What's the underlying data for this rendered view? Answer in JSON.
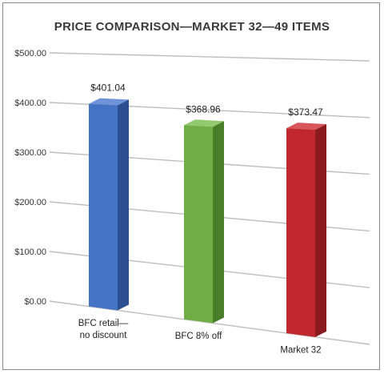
{
  "chart_data": {
    "type": "bar",
    "title": "PRICE COMPARISON—MARKET 32—49 ITEMS",
    "categories": [
      [
        "BFC retail—",
        "no discount"
      ],
      [
        "BFC 8% off"
      ],
      [
        "Market 32"
      ]
    ],
    "values": [
      401.04,
      368.96,
      373.47
    ],
    "value_labels": [
      "$401.04",
      "$368.96",
      "$373.47"
    ],
    "ylim": [
      0,
      500
    ],
    "yticks": [
      "$0.00",
      "$100.00",
      "$200.00",
      "$300.00",
      "$400.00",
      "$500.00"
    ],
    "grid": true,
    "three_d": true,
    "colors": {
      "bars": [
        "#4472c4",
        "#70ad47",
        "#c0282d"
      ],
      "bar_tops": [
        "#6e93d8",
        "#93c96f",
        "#d8555a"
      ],
      "bar_sides": [
        "#2c4f91",
        "#4a7e2b",
        "#8a1a1e"
      ],
      "grid": "#bdbdbd",
      "title": "#3a3a3a"
    }
  }
}
